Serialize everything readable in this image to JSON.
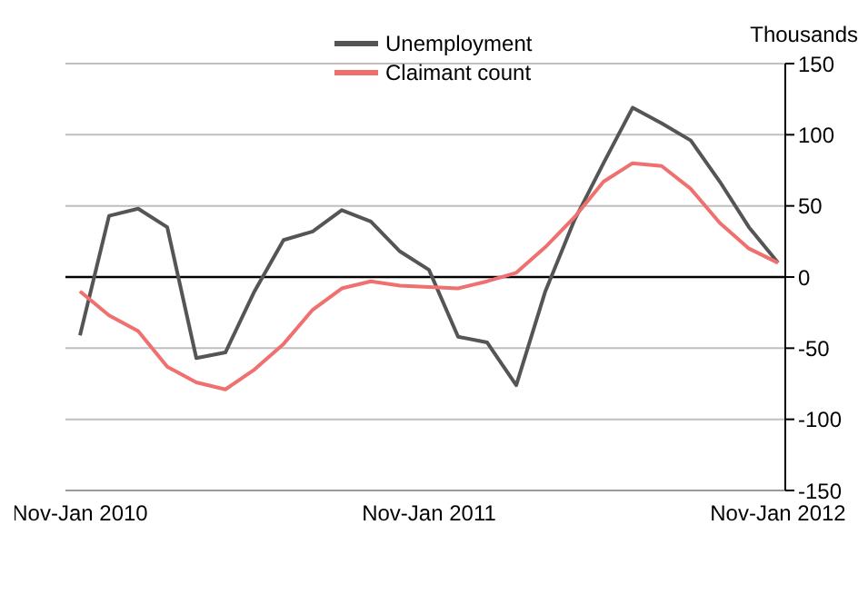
{
  "chart_data": {
    "type": "line",
    "ylabel": "Thousands",
    "categories": [
      "Nov-Jan 2010",
      null,
      null,
      null,
      null,
      null,
      null,
      null,
      null,
      null,
      null,
      null,
      "Nov-Jan 2011",
      null,
      null,
      null,
      null,
      null,
      null,
      null,
      null,
      null,
      null,
      null,
      "Nov-Jan 2012"
    ],
    "series": [
      {
        "name": "Unemployment",
        "color": "#555555",
        "values": [
          -41,
          43,
          48,
          35,
          -57,
          -53,
          -10,
          26,
          32,
          47,
          39,
          18,
          5,
          -42,
          -46,
          -76,
          -10,
          40,
          80,
          119,
          108,
          96,
          67,
          35,
          10
        ]
      },
      {
        "name": "Claimant count",
        "color": "#f07070",
        "values": [
          -10,
          -27,
          -38,
          -63,
          -74,
          -79,
          -65,
          -47,
          -23,
          -8,
          -3,
          -6,
          -7,
          -8,
          -3,
          3,
          21,
          42,
          67,
          80,
          78,
          62,
          38,
          20,
          10
        ]
      }
    ],
    "ylim": [
      -150,
      150
    ],
    "yticks": [
      -150,
      -100,
      -50,
      0,
      50,
      100,
      150
    ],
    "grid": "y",
    "legend": "top",
    "marker": "none",
    "line_style": "solid",
    "ref_lines": [
      {
        "axis": "y",
        "value": 0,
        "color": "#000000"
      }
    ]
  }
}
